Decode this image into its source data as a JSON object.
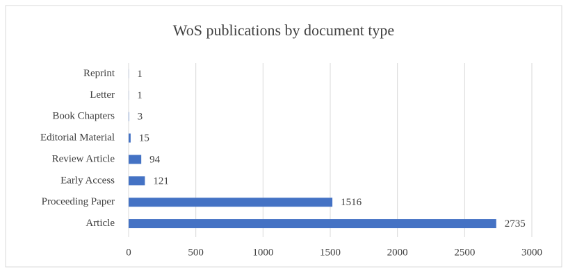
{
  "chart_data": {
    "type": "bar",
    "orientation": "horizontal",
    "title": "WoS publications by document type",
    "categories": [
      "Reprint",
      "Letter",
      "Book Chapters",
      "Editorial Material",
      "Review Article",
      "Early Access",
      "Proceeding Paper",
      "Article"
    ],
    "values": [
      1,
      1,
      3,
      15,
      94,
      121,
      1516,
      2735
    ],
    "color": "#4472c4",
    "xlim": [
      0,
      3000
    ],
    "xticks": [
      0,
      500,
      1000,
      1500,
      2000,
      2500,
      3000
    ],
    "grid": true
  }
}
